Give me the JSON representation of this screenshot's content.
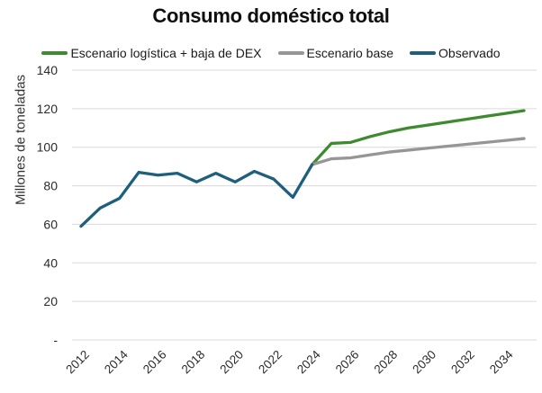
{
  "chart_data": {
    "type": "line",
    "title": "Consumo doméstico total",
    "ylabel": "Millones de toneladas",
    "xlabel": "",
    "ylim": [
      0,
      140
    ],
    "xlim": [
      2012,
      2035
    ],
    "grid": true,
    "legend_position": "top",
    "grid_color": "#dadada",
    "tick_color": "#2b2b2b",
    "y_ticks": [
      {
        "value": 0,
        "label": "-"
      },
      {
        "value": 20,
        "label": "20"
      },
      {
        "value": 40,
        "label": "40"
      },
      {
        "value": 60,
        "label": "60"
      },
      {
        "value": 80,
        "label": "80"
      },
      {
        "value": 100,
        "label": "100"
      },
      {
        "value": 120,
        "label": "120"
      },
      {
        "value": 140,
        "label": "140"
      }
    ],
    "x_ticks": [
      2012,
      2014,
      2016,
      2018,
      2020,
      2022,
      2024,
      2026,
      2028,
      2030,
      2032,
      2034
    ],
    "series": [
      {
        "name": "Escenario logística + baja de DEX",
        "color": "#3e8b2f",
        "x": [
          2024,
          2025,
          2026,
          2027,
          2028,
          2029,
          2030,
          2031,
          2032,
          2033,
          2034,
          2035
        ],
        "values": [
          91,
          102,
          102.5,
          105.5,
          108,
          110,
          111.5,
          113,
          114.5,
          116,
          117.5,
          119
        ]
      },
      {
        "name": "Escenario base",
        "color": "#969696",
        "x": [
          2024,
          2025,
          2026,
          2027,
          2028,
          2029,
          2030,
          2031,
          2032,
          2033,
          2034,
          2035
        ],
        "values": [
          91,
          94,
          94.5,
          96,
          97.5,
          98.5,
          99.5,
          100.5,
          101.5,
          102.5,
          103.5,
          104.5
        ]
      },
      {
        "name": "Observado",
        "color": "#1e5f7d",
        "x": [
          2012,
          2013,
          2014,
          2015,
          2016,
          2017,
          2018,
          2019,
          2020,
          2021,
          2022,
          2023,
          2024
        ],
        "values": [
          59,
          68.5,
          73.5,
          87,
          85.5,
          86.5,
          82,
          86.5,
          82,
          87.5,
          83.5,
          74,
          91
        ]
      }
    ]
  }
}
